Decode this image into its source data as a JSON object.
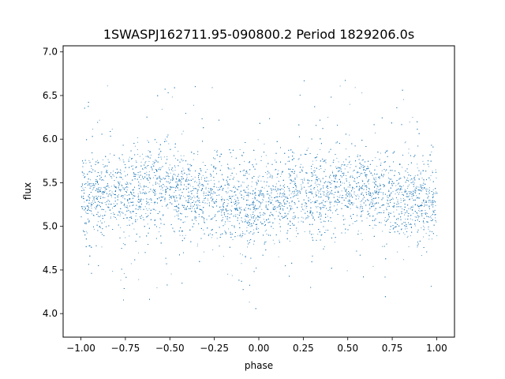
{
  "chart_data": {
    "type": "scatter",
    "title": "1SWASPJ162711.95-090800.2 Period 1829206.0s",
    "xlabel": "phase",
    "ylabel": "flux",
    "xlim": [
      -1.1,
      1.1
    ],
    "ylim": [
      3.73,
      7.07
    ],
    "x_ticks": [
      -1.0,
      -0.75,
      -0.5,
      -0.25,
      0.0,
      0.25,
      0.5,
      0.75,
      1.0
    ],
    "x_tick_labels": [
      "−1.00",
      "−0.75",
      "−0.50",
      "−0.25",
      "0.00",
      "0.25",
      "0.50",
      "0.75",
      "1.00"
    ],
    "y_ticks": [
      4.0,
      4.5,
      5.0,
      5.5,
      6.0,
      6.5,
      7.0
    ],
    "y_tick_labels": [
      "4.0",
      "4.5",
      "5.0",
      "5.5",
      "6.0",
      "6.5",
      "7.0"
    ],
    "grid": false,
    "legend": "none",
    "marker_color": "#1f77b4",
    "series": [
      {
        "x_range": [
          -1.0,
          1.0
        ],
        "band_center": [
          {
            "x": -1.0,
            "y": 5.32
          },
          {
            "x": -0.75,
            "y": 5.42
          },
          {
            "x": -0.5,
            "y": 5.45
          },
          {
            "x": -0.25,
            "y": 5.32
          },
          {
            "x": 0.0,
            "y": 5.25
          },
          {
            "x": 0.25,
            "y": 5.38
          },
          {
            "x": 0.5,
            "y": 5.45
          },
          {
            "x": 0.75,
            "y": 5.35
          },
          {
            "x": 1.0,
            "y": 5.28
          }
        ],
        "band_spread": 0.2,
        "min_flux": 3.88,
        "max_flux": 6.92
      }
    ]
  }
}
